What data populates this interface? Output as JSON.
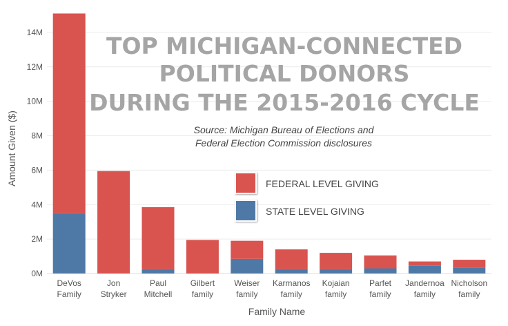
{
  "chart_data": {
    "type": "bar",
    "stacked": true,
    "title": [
      "TOP MICHIGAN-CONNECTED",
      "POLITICAL DONORS",
      "DURING THE 2015-2016 CYCLE"
    ],
    "subtitle": [
      "Source:  Michigan Bureau of Elections and",
      "Federal Election Commission disclosures"
    ],
    "xlabel": "Family Name",
    "ylabel": "Amount Given ($)",
    "ylim": [
      0,
      15000000
    ],
    "yticks": [
      0,
      2000000,
      4000000,
      6000000,
      8000000,
      10000000,
      12000000,
      14000000
    ],
    "ytick_labels": [
      "0M",
      "2M",
      "4M",
      "6M",
      "8M",
      "10M",
      "12M",
      "14M"
    ],
    "categories": [
      [
        "DeVos",
        "Family"
      ],
      [
        "Jon",
        "Stryker"
      ],
      [
        "Paul",
        "Mitchell"
      ],
      [
        "Gilbert",
        "family"
      ],
      [
        "Weiser",
        "family"
      ],
      [
        "Karmanos",
        "family"
      ],
      [
        "Kojaian",
        "family"
      ],
      [
        "Parfet",
        "family"
      ],
      [
        "Jandernoa",
        "family"
      ],
      [
        "Nicholson",
        "family"
      ]
    ],
    "series": [
      {
        "name": "STATE LEVEL GIVING",
        "color": "#4e79a7",
        "values": [
          3500000,
          0,
          250000,
          0,
          850000,
          250000,
          250000,
          300000,
          450000,
          350000
        ]
      },
      {
        "name": "FEDERAL LEVEL GIVING",
        "color": "#d9534f",
        "values": [
          11600000,
          5950000,
          3600000,
          1950000,
          1050000,
          1150000,
          950000,
          750000,
          250000,
          450000
        ]
      }
    ],
    "legend": [
      "FEDERAL LEVEL GIVING",
      "STATE LEVEL GIVING"
    ],
    "legend_position": "center"
  }
}
